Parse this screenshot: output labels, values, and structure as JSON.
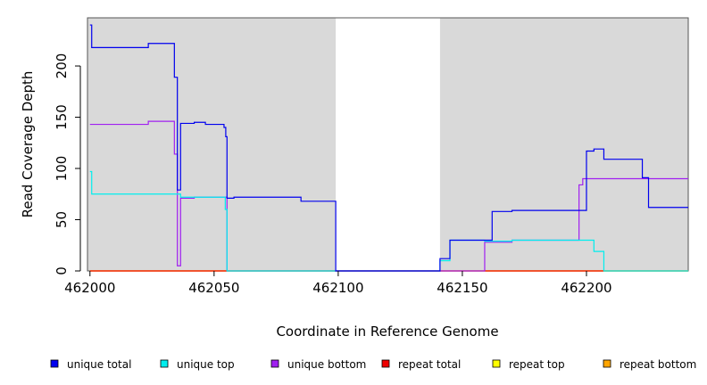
{
  "chart_data": {
    "type": "line",
    "title": "",
    "xlabel": "Coordinate in Reference Genome",
    "ylabel": "Read Coverage Depth",
    "xlim": [
      461999,
      462241
    ],
    "ylim": [
      0,
      247
    ],
    "xticks": [
      {
        "value": 462000,
        "label": "462000"
      },
      {
        "value": 462050,
        "label": "462050"
      },
      {
        "value": 462100,
        "label": "462100"
      },
      {
        "value": 462150,
        "label": "462150"
      },
      {
        "value": 462200,
        "label": "462200"
      }
    ],
    "yticks": [
      {
        "value": 0,
        "label": "0"
      },
      {
        "value": 50,
        "label": "50"
      },
      {
        "value": 100,
        "label": "100"
      },
      {
        "value": 150,
        "label": "150"
      },
      {
        "value": 200,
        "label": "200"
      }
    ],
    "background_shading": {
      "color": "#d9d9d9",
      "ranges": [
        [
          461999,
          462099
        ],
        [
          462141,
          462241
        ]
      ]
    },
    "legend": {
      "placement": "bottom",
      "entries": [
        {
          "label": "unique total",
          "color": "#0000ee"
        },
        {
          "label": "unique top",
          "color": "#00eeee"
        },
        {
          "label": "unique bottom",
          "color": "#a020f0"
        },
        {
          "label": "repeat total",
          "color": "#ee0000"
        },
        {
          "label": "repeat top",
          "color": "#ffff00"
        },
        {
          "label": "repeat bottom",
          "color": "#ffa500"
        }
      ]
    },
    "series": [
      {
        "name": "unique total",
        "color": "#0000ee",
        "x": [
          462000,
          462000.7,
          462023.5,
          462034,
          462035.2,
          462036.5,
          462042,
          462046.5,
          462054,
          462054.7,
          462055.2,
          462058,
          462085,
          462099,
          462141,
          462145,
          462159,
          462162,
          462170,
          462192,
          462197,
          462200,
          462203,
          462207,
          462222.5,
          462225
        ],
        "y": [
          240,
          218,
          222,
          189,
          79,
          144,
          145,
          143,
          140,
          131,
          71,
          72,
          68,
          0,
          12,
          30,
          30,
          58,
          59,
          59,
          59,
          117,
          119,
          109,
          91,
          62
        ],
        "x_end": 462241
      },
      {
        "name": "unique top",
        "color": "#00eeee",
        "x": [
          462000,
          462000.7,
          462036.5,
          462054.5,
          462055.2,
          462141,
          462145,
          462159,
          462162,
          462170,
          462200,
          462203,
          462207
        ],
        "y": [
          97,
          75,
          72,
          60,
          0,
          10,
          30,
          29,
          29,
          30,
          30,
          19,
          0
        ],
        "x_end": 462241
      },
      {
        "name": "unique bottom",
        "color": "#a020f0",
        "x": [
          462000,
          462023.5,
          462034,
          462035.2,
          462036.5,
          462042,
          462055.2,
          462159,
          462170,
          462197,
          462198.5
        ],
        "y": [
          143,
          146,
          114,
          5,
          71,
          72,
          0,
          28,
          30,
          84,
          90
        ],
        "x_end": 462241
      },
      {
        "name": "repeat total",
        "color": "#ee0000",
        "x": [
          462000
        ],
        "y": [
          0
        ],
        "x_end": 462241
      },
      {
        "name": "repeat top",
        "color": "#ffff00",
        "x": [
          462000
        ],
        "y": [
          0
        ],
        "x_end": 462241
      },
      {
        "name": "repeat bottom",
        "color": "#ffa500",
        "x": [
          462000
        ],
        "y": [
          0
        ],
        "x_end": 462241
      }
    ]
  }
}
